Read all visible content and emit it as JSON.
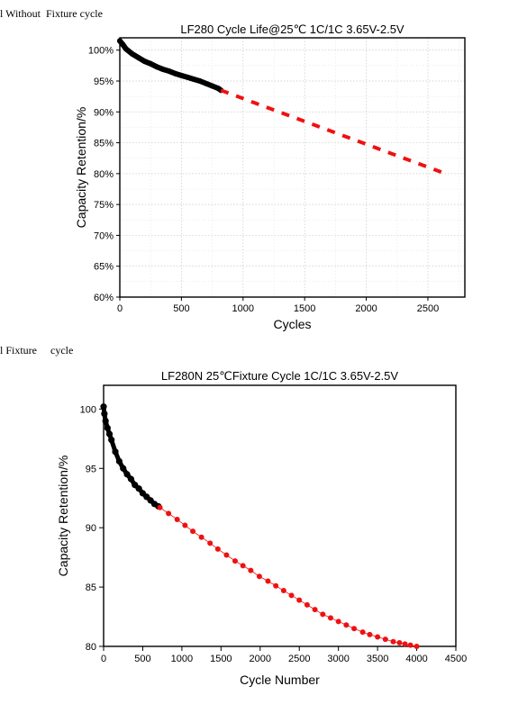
{
  "captions": [
    "l Without  Fixture cycle",
    "l Fixture     cycle"
  ],
  "chart_data": [
    {
      "type": "scatter",
      "title": "LF280  Cycle Life@25℃ 1C/1C 3.65V-2.5V",
      "xlabel": "Cycles",
      "ylabel": "Capacity Retention/%",
      "xlim": [
        0,
        2800
      ],
      "ylim": [
        60,
        102
      ],
      "x_ticks": [
        0,
        500,
        1000,
        1500,
        2000,
        2500
      ],
      "y_ticks": [
        60,
        65,
        70,
        75,
        80,
        85,
        90,
        95,
        100
      ],
      "y_tick_labels": [
        "60%",
        "65%",
        "70%",
        "75%",
        "80%",
        "85%",
        "90%",
        "95%",
        "100%"
      ],
      "grid": true,
      "series": [
        {
          "color": "#000000",
          "style": "measured",
          "x": [
            0,
            25,
            50,
            100,
            150,
            200,
            250,
            300,
            350,
            400,
            450,
            500,
            550,
            600,
            650,
            700,
            750,
            800,
            820
          ],
          "y": [
            101.5,
            100.9,
            100.2,
            99.4,
            98.8,
            98.2,
            97.8,
            97.3,
            96.9,
            96.6,
            96.2,
            95.9,
            95.6,
            95.3,
            95.0,
            94.6,
            94.2,
            93.8,
            93.5
          ]
        },
        {
          "color": "#ee1111",
          "style": "extrapolated",
          "x": [
            820,
            2670
          ],
          "y": [
            93.5,
            79.8
          ]
        }
      ]
    },
    {
      "type": "scatter",
      "title": "LF280N 25℃Fixture Cycle 1C/1C 3.65V-2.5V",
      "xlabel": "Cycle Number",
      "ylabel": "Capacity Retention/%",
      "xlim": [
        0,
        4500
      ],
      "ylim": [
        80,
        102
      ],
      "x_ticks": [
        0,
        500,
        1000,
        1500,
        2000,
        2500,
        3000,
        3500,
        4000,
        4500
      ],
      "y_ticks": [
        80,
        85,
        90,
        95,
        100
      ],
      "y_tick_labels": [
        "80",
        "85",
        "90",
        "95",
        "100"
      ],
      "grid": false,
      "series": [
        {
          "color": "#000000",
          "style": "measured",
          "x": [
            0,
            10,
            25,
            50,
            75,
            100,
            150,
            200,
            250,
            300,
            350,
            400,
            450,
            500,
            550,
            600,
            650,
            700
          ],
          "y": [
            100.2,
            99.6,
            99.0,
            98.4,
            97.9,
            97.4,
            96.4,
            95.6,
            95.0,
            94.5,
            94.1,
            93.6,
            93.3,
            92.9,
            92.6,
            92.3,
            92.0,
            91.8
          ]
        },
        {
          "color": "#ee1111",
          "style": "extrapolated",
          "x": [
            720,
            830,
            940,
            1040,
            1140,
            1250,
            1360,
            1460,
            1570,
            1680,
            1780,
            1880,
            1990,
            2100,
            2200,
            2300,
            2400,
            2500,
            2600,
            2700,
            2800,
            2900,
            3000,
            3100,
            3200,
            3310,
            3400,
            3500,
            3600,
            3700,
            3780,
            3850,
            3920,
            4000
          ],
          "y": [
            91.7,
            91.2,
            90.7,
            90.2,
            89.7,
            89.2,
            88.7,
            88.2,
            87.7,
            87.2,
            86.8,
            86.4,
            85.9,
            85.5,
            85.1,
            84.7,
            84.3,
            83.9,
            83.5,
            83.1,
            82.7,
            82.4,
            82.1,
            81.8,
            81.5,
            81.2,
            81.0,
            80.8,
            80.6,
            80.4,
            80.3,
            80.2,
            80.1,
            80.0
          ]
        }
      ]
    }
  ]
}
